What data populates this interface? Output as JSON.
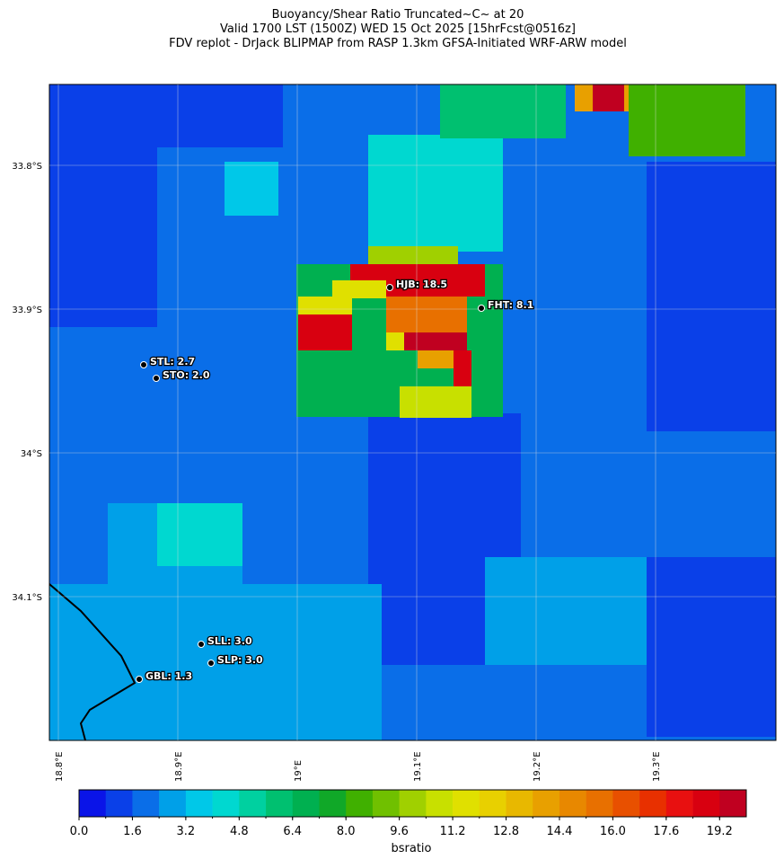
{
  "title": [
    "Buoyancy/Shear Ratio Truncated~C~    at 20",
    "Valid 1700 LST (1500Z) WED 15 Oct 2025 [15hrFcst@0516z]",
    "FDV replot - DrJack BLIPMAP from RASP 1.3km GFSA-Initiated WRF-ARW model"
  ],
  "map": {
    "lat_ticks": [
      {
        "value": 33.8,
        "label": "33.8°S"
      },
      {
        "value": 33.9,
        "label": "33.9°S"
      },
      {
        "value": 34,
        "label": "34°S"
      },
      {
        "value": 34.1,
        "label": "34.1°S"
      }
    ],
    "lon_ticks": [
      {
        "value": 18.8,
        "label": "18.8°E"
      },
      {
        "value": 18.9,
        "label": "18.9°E"
      },
      {
        "value": 19,
        "label": "19°E"
      },
      {
        "value": 19.1,
        "label": "19.1°E"
      },
      {
        "value": 19.2,
        "label": "19.2°E"
      },
      {
        "value": 19.3,
        "label": "19.3°E"
      }
    ],
    "stations": [
      "HJB: 18.5",
      "FHT: 8.1",
      "STL: 2.7",
      "STO: 2.0",
      "SLL: 3.0",
      "SLP: 3.0",
      "GBL: 1.3"
    ]
  },
  "colorbar": {
    "label": "bsratio",
    "bounds": [
      0,
      0.8,
      1.6,
      2.4,
      3.2,
      4,
      4.8,
      5.6,
      6.4,
      7.2,
      8,
      8.8,
      9.6,
      10.4,
      11.2,
      12,
      12.8,
      13.6,
      14.4,
      15.2,
      16,
      16.8,
      17.6,
      18.4,
      19.2,
      20
    ],
    "colors": [
      "#0a14e8",
      "#0a40e8",
      "#0a6ee8",
      "#00a0e8",
      "#00c8e8",
      "#00d8d0",
      "#00d0a0",
      "#00c070",
      "#00b050",
      "#10a828",
      "#40b000",
      "#70c000",
      "#a0d000",
      "#c8e000",
      "#e0e000",
      "#e8d000",
      "#e8b800",
      "#e8a000",
      "#e88800",
      "#e87000",
      "#e85000",
      "#e83000",
      "#e81010",
      "#d80010",
      "#c00020"
    ],
    "ticks": [
      {
        "value": 0,
        "label": "0.0"
      },
      1.6,
      3.2,
      4.8,
      6.4,
      {
        "value": 8,
        "label": "8.0"
      },
      9.6,
      11.2,
      12.8,
      14.4,
      {
        "value": 16,
        "label": "16.0"
      },
      17.6,
      19.2
    ]
  }
}
